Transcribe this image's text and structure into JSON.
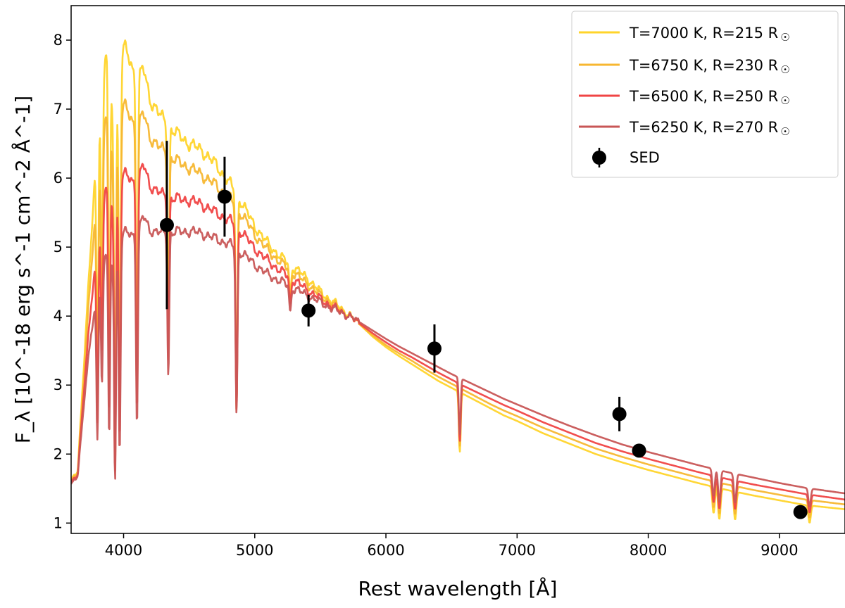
{
  "chart_data": {
    "type": "line",
    "title": "",
    "xlabel": "Rest wavelength [Å]",
    "ylabel": "F_λ [10^-18 erg s^-1 cm^-2 Å^-1]",
    "xlim": [
      3600,
      9500
    ],
    "ylim": [
      0.85,
      8.5
    ],
    "xticks": [
      4000,
      5000,
      6000,
      7000,
      8000,
      9000
    ],
    "xtick_labels": [
      "4000",
      "5000",
      "6000",
      "7000",
      "8000",
      "9000"
    ],
    "yticks": [
      1,
      2,
      3,
      4,
      5,
      6,
      7,
      8
    ],
    "ytick_labels": [
      "1",
      "2",
      "3",
      "4",
      "5",
      "6",
      "7",
      "8"
    ],
    "grid": false,
    "legend_position": "top-right",
    "series": [
      {
        "name": "T=7000 K, R=215 R☉",
        "label_main": "T=7000 K, R=215 R",
        "label_symbol": "☉",
        "color": "#ffd42a",
        "scale": 1.0,
        "lines": [
          [
            3800,
            0.55
          ],
          [
            3835,
            0.4
          ],
          [
            3890,
            0.62
          ],
          [
            3935,
            0.75
          ],
          [
            3970,
            0.68
          ],
          [
            4102,
            0.6
          ],
          [
            4341,
            0.45
          ],
          [
            4861,
            0.55
          ],
          [
            5270,
            0.1
          ],
          [
            6563,
            0.3
          ],
          [
            8498,
            0.25
          ],
          [
            8542,
            0.3
          ],
          [
            8662,
            0.28
          ],
          [
            9230,
            0.2
          ]
        ],
        "points": [
          [
            3600,
            1.62
          ],
          [
            3650,
            1.75
          ],
          [
            3700,
            3.4
          ],
          [
            3750,
            5.0
          ],
          [
            3800,
            6.6
          ],
          [
            3850,
            7.55
          ],
          [
            3880,
            8.05
          ],
          [
            3920,
            6.8
          ],
          [
            3960,
            7.3
          ],
          [
            4000,
            7.9
          ],
          [
            4050,
            7.7
          ],
          [
            4100,
            7.4
          ],
          [
            4150,
            7.6
          ],
          [
            4200,
            7.15
          ],
          [
            4300,
            6.85
          ],
          [
            4400,
            6.65
          ],
          [
            4500,
            6.5
          ],
          [
            4600,
            6.4
          ],
          [
            4700,
            6.2
          ],
          [
            4800,
            5.95
          ],
          [
            4900,
            5.65
          ],
          [
            5000,
            5.3
          ],
          [
            5100,
            5.05
          ],
          [
            5200,
            4.85
          ],
          [
            5300,
            4.7
          ],
          [
            5400,
            4.55
          ],
          [
            5500,
            4.35
          ],
          [
            5600,
            4.2
          ],
          [
            5700,
            4.05
          ],
          [
            5800,
            3.88
          ],
          [
            5900,
            3.7
          ],
          [
            6000,
            3.55
          ],
          [
            6100,
            3.42
          ],
          [
            6200,
            3.3
          ],
          [
            6300,
            3.18
          ],
          [
            6400,
            3.06
          ],
          [
            6500,
            2.96
          ],
          [
            6600,
            2.86
          ],
          [
            6700,
            2.76
          ],
          [
            6800,
            2.66
          ],
          [
            6900,
            2.56
          ],
          [
            7000,
            2.48
          ],
          [
            7200,
            2.3
          ],
          [
            7400,
            2.15
          ],
          [
            7600,
            2.0
          ],
          [
            7800,
            1.88
          ],
          [
            8000,
            1.77
          ],
          [
            8200,
            1.67
          ],
          [
            8400,
            1.57
          ],
          [
            8600,
            1.48
          ],
          [
            8800,
            1.4
          ],
          [
            9000,
            1.33
          ],
          [
            9200,
            1.26
          ],
          [
            9500,
            1.2
          ]
        ]
      },
      {
        "name": "T=6750 K, R=230 R☉",
        "label_main": "T=6750 K, R=230 R",
        "label_symbol": "☉",
        "color": "#f7b731",
        "scale": 0.95,
        "lines": [
          [
            3800,
            0.55
          ],
          [
            3835,
            0.4
          ],
          [
            3890,
            0.62
          ],
          [
            3935,
            0.75
          ],
          [
            3970,
            0.68
          ],
          [
            4102,
            0.6
          ],
          [
            4341,
            0.45
          ],
          [
            4861,
            0.55
          ],
          [
            5270,
            0.1
          ],
          [
            6563,
            0.3
          ],
          [
            8498,
            0.25
          ],
          [
            8542,
            0.3
          ],
          [
            8662,
            0.28
          ],
          [
            9230,
            0.2
          ]
        ],
        "points": [
          [
            3600,
            1.6
          ],
          [
            3650,
            1.73
          ],
          [
            3700,
            3.2
          ],
          [
            3750,
            4.6
          ],
          [
            3800,
            5.8
          ],
          [
            3850,
            6.7
          ],
          [
            3880,
            7.1
          ],
          [
            3920,
            6.2
          ],
          [
            3960,
            6.6
          ],
          [
            4000,
            7.05
          ],
          [
            4050,
            6.9
          ],
          [
            4100,
            6.7
          ],
          [
            4150,
            6.95
          ],
          [
            4200,
            6.6
          ],
          [
            4300,
            6.4
          ],
          [
            4400,
            6.25
          ],
          [
            4500,
            6.15
          ],
          [
            4600,
            6.05
          ],
          [
            4700,
            5.9
          ],
          [
            4800,
            5.72
          ],
          [
            4900,
            5.48
          ],
          [
            5000,
            5.18
          ],
          [
            5100,
            4.95
          ],
          [
            5200,
            4.77
          ],
          [
            5300,
            4.62
          ],
          [
            5400,
            4.47
          ],
          [
            5500,
            4.3
          ],
          [
            5600,
            4.17
          ],
          [
            5700,
            4.03
          ],
          [
            5800,
            3.88
          ],
          [
            5900,
            3.72
          ],
          [
            6000,
            3.58
          ],
          [
            6100,
            3.46
          ],
          [
            6200,
            3.35
          ],
          [
            6300,
            3.23
          ],
          [
            6400,
            3.12
          ],
          [
            6500,
            3.02
          ],
          [
            6600,
            2.92
          ],
          [
            6700,
            2.82
          ],
          [
            6800,
            2.72
          ],
          [
            6900,
            2.63
          ],
          [
            7000,
            2.55
          ],
          [
            7200,
            2.38
          ],
          [
            7400,
            2.23
          ],
          [
            7600,
            2.08
          ],
          [
            7800,
            1.96
          ],
          [
            8000,
            1.85
          ],
          [
            8200,
            1.75
          ],
          [
            8400,
            1.65
          ],
          [
            8600,
            1.56
          ],
          [
            8800,
            1.48
          ],
          [
            9000,
            1.41
          ],
          [
            9200,
            1.34
          ],
          [
            9500,
            1.27
          ]
        ]
      },
      {
        "name": "T=6500 K, R=250 R☉",
        "label_main": "T=6500 K, R=250 R",
        "label_symbol": "☉",
        "color": "#f04545",
        "scale": 0.92,
        "lines": [
          [
            3800,
            0.55
          ],
          [
            3835,
            0.4
          ],
          [
            3890,
            0.62
          ],
          [
            3935,
            0.75
          ],
          [
            3970,
            0.68
          ],
          [
            4102,
            0.6
          ],
          [
            4341,
            0.45
          ],
          [
            4861,
            0.55
          ],
          [
            5270,
            0.1
          ],
          [
            6563,
            0.3
          ],
          [
            8498,
            0.25
          ],
          [
            8542,
            0.3
          ],
          [
            8662,
            0.28
          ],
          [
            9230,
            0.2
          ]
        ],
        "points": [
          [
            3600,
            1.58
          ],
          [
            3650,
            1.7
          ],
          [
            3700,
            3.0
          ],
          [
            3750,
            4.1
          ],
          [
            3800,
            5.0
          ],
          [
            3850,
            5.7
          ],
          [
            3880,
            6.05
          ],
          [
            3920,
            5.5
          ],
          [
            3960,
            5.8
          ],
          [
            4000,
            6.05
          ],
          [
            4050,
            6.0
          ],
          [
            4100,
            5.9
          ],
          [
            4150,
            6.2
          ],
          [
            4200,
            5.9
          ],
          [
            4300,
            5.75
          ],
          [
            4400,
            5.7
          ],
          [
            4500,
            5.68
          ],
          [
            4600,
            5.62
          ],
          [
            4700,
            5.5
          ],
          [
            4800,
            5.4
          ],
          [
            4900,
            5.22
          ],
          [
            5000,
            4.98
          ],
          [
            5100,
            4.8
          ],
          [
            5200,
            4.65
          ],
          [
            5300,
            4.52
          ],
          [
            5400,
            4.38
          ],
          [
            5500,
            4.25
          ],
          [
            5600,
            4.13
          ],
          [
            5700,
            4.02
          ],
          [
            5800,
            3.89
          ],
          [
            5900,
            3.75
          ],
          [
            6000,
            3.62
          ],
          [
            6100,
            3.5
          ],
          [
            6200,
            3.4
          ],
          [
            6300,
            3.29
          ],
          [
            6400,
            3.18
          ],
          [
            6500,
            3.08
          ],
          [
            6600,
            2.98
          ],
          [
            6700,
            2.89
          ],
          [
            6800,
            2.8
          ],
          [
            6900,
            2.71
          ],
          [
            7000,
            2.63
          ],
          [
            7200,
            2.46
          ],
          [
            7400,
            2.31
          ],
          [
            7600,
            2.16
          ],
          [
            7800,
            2.04
          ],
          [
            8000,
            1.93
          ],
          [
            8200,
            1.83
          ],
          [
            8400,
            1.73
          ],
          [
            8600,
            1.64
          ],
          [
            8800,
            1.56
          ],
          [
            9000,
            1.49
          ],
          [
            9200,
            1.42
          ],
          [
            9500,
            1.34
          ]
        ]
      },
      {
        "name": "T=6250 K, R=270 R☉",
        "label_main": "T=6250 K, R=270 R",
        "label_symbol": "☉",
        "color": "#c85656",
        "scale": 0.88,
        "lines": [
          [
            3800,
            0.55
          ],
          [
            3835,
            0.4
          ],
          [
            3890,
            0.62
          ],
          [
            3935,
            0.75
          ],
          [
            3970,
            0.68
          ],
          [
            4102,
            0.6
          ],
          [
            4341,
            0.45
          ],
          [
            4861,
            0.55
          ],
          [
            5270,
            0.1
          ],
          [
            6563,
            0.3
          ],
          [
            8498,
            0.25
          ],
          [
            8542,
            0.3
          ],
          [
            8662,
            0.28
          ],
          [
            9230,
            0.2
          ]
        ],
        "points": [
          [
            3600,
            1.55
          ],
          [
            3650,
            1.68
          ],
          [
            3700,
            2.8
          ],
          [
            3750,
            3.7
          ],
          [
            3800,
            4.3
          ],
          [
            3850,
            4.8
          ],
          [
            3880,
            5.0
          ],
          [
            3920,
            4.7
          ],
          [
            3960,
            4.95
          ],
          [
            4000,
            5.2
          ],
          [
            4050,
            5.2
          ],
          [
            4100,
            5.15
          ],
          [
            4150,
            5.45
          ],
          [
            4200,
            5.25
          ],
          [
            4300,
            5.2
          ],
          [
            4400,
            5.22
          ],
          [
            4500,
            5.23
          ],
          [
            4600,
            5.2
          ],
          [
            4700,
            5.12
          ],
          [
            4800,
            5.05
          ],
          [
            4900,
            4.92
          ],
          [
            5000,
            4.75
          ],
          [
            5100,
            4.6
          ],
          [
            5200,
            4.5
          ],
          [
            5300,
            4.4
          ],
          [
            5400,
            4.3
          ],
          [
            5500,
            4.2
          ],
          [
            5600,
            4.1
          ],
          [
            5700,
            4.02
          ],
          [
            5800,
            3.91
          ],
          [
            5900,
            3.79
          ],
          [
            6000,
            3.67
          ],
          [
            6100,
            3.56
          ],
          [
            6200,
            3.46
          ],
          [
            6300,
            3.36
          ],
          [
            6400,
            3.26
          ],
          [
            6500,
            3.16
          ],
          [
            6600,
            3.07
          ],
          [
            6700,
            2.98
          ],
          [
            6800,
            2.89
          ],
          [
            6900,
            2.8
          ],
          [
            7000,
            2.72
          ],
          [
            7200,
            2.56
          ],
          [
            7400,
            2.41
          ],
          [
            7600,
            2.27
          ],
          [
            7800,
            2.14
          ],
          [
            8000,
            2.03
          ],
          [
            8200,
            1.93
          ],
          [
            8400,
            1.83
          ],
          [
            8600,
            1.74
          ],
          [
            8800,
            1.66
          ],
          [
            9000,
            1.58
          ],
          [
            9200,
            1.51
          ],
          [
            9500,
            1.43
          ]
        ]
      }
    ],
    "sed": {
      "name": "SED",
      "color": "#000000",
      "points": [
        {
          "x": 4330,
          "y": 5.32,
          "err": 1.22
        },
        {
          "x": 4770,
          "y": 5.73,
          "err": 0.58
        },
        {
          "x": 5410,
          "y": 4.08,
          "err": 0.23
        },
        {
          "x": 6370,
          "y": 3.53,
          "err": 0.35
        },
        {
          "x": 7780,
          "y": 2.58,
          "err": 0.25
        },
        {
          "x": 7930,
          "y": 2.05,
          "err": 0.05
        },
        {
          "x": 9160,
          "y": 1.16,
          "err": 0.1
        }
      ]
    }
  }
}
